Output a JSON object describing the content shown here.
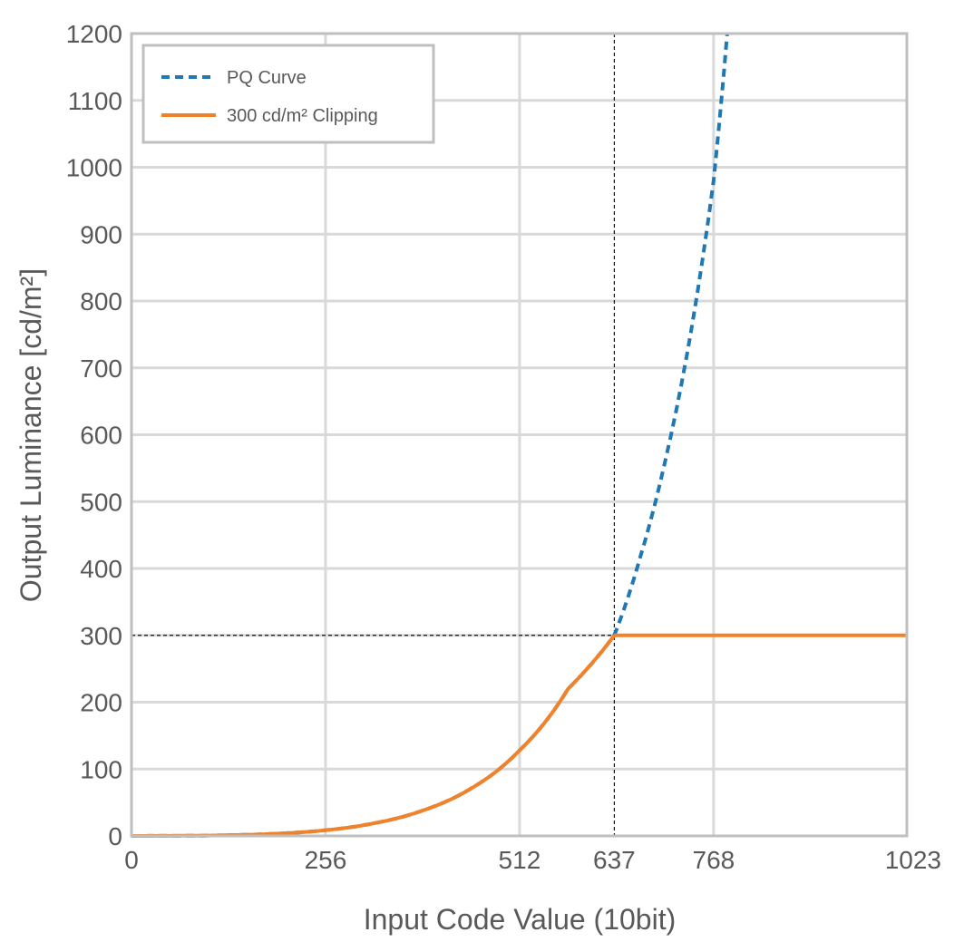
{
  "chart_data": {
    "type": "line",
    "xlabel": "Input Code Value (10bit)",
    "ylabel": "Output Luminance [cd/m²]",
    "xlim": [
      0,
      1023
    ],
    "ylim": [
      0,
      1200
    ],
    "x_ticks": [
      0,
      256,
      512,
      637,
      768,
      1023
    ],
    "y_ticks": [
      0,
      100,
      200,
      300,
      400,
      500,
      600,
      700,
      800,
      900,
      1000,
      1100,
      1200
    ],
    "grid": true,
    "legend_position": "top-left",
    "series": [
      {
        "name": "PQ Curve",
        "color": "#1f77b4",
        "style": "dashed",
        "x": [
          0,
          64,
          128,
          192,
          256,
          320,
          384,
          448,
          512,
          576,
          637,
          672,
          704,
          736,
          768,
          786
        ],
        "y": [
          0,
          0.2,
          1.1,
          3.4,
          8.6,
          19,
          38,
          71,
          128,
          220,
          300,
          420,
          560,
          740,
          980,
          1200
        ]
      },
      {
        "name": "300 cd/m² Clipping",
        "color": "#f28229",
        "style": "solid",
        "x": [
          0,
          64,
          128,
          192,
          256,
          320,
          384,
          448,
          512,
          576,
          637,
          700,
          800,
          900,
          1023
        ],
        "y": [
          0,
          0.2,
          1.1,
          3.4,
          8.6,
          19,
          38,
          71,
          128,
          220,
          300,
          300,
          300,
          300,
          300
        ]
      }
    ],
    "reference_lines": [
      {
        "axis": "x",
        "value": 637
      },
      {
        "axis": "y",
        "value": 300
      }
    ]
  }
}
